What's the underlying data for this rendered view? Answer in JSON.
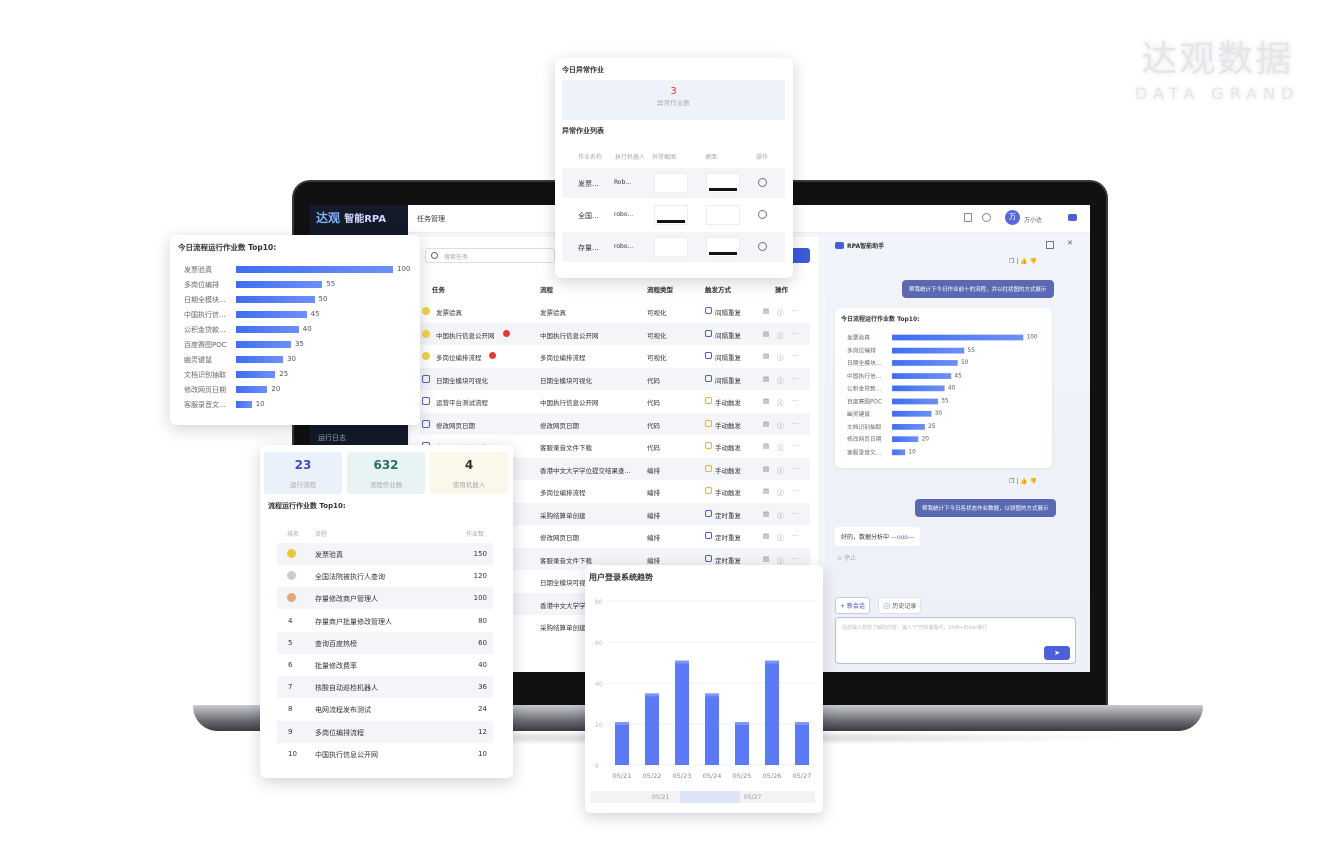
{
  "brand": {
    "cn": "达观数据",
    "en": "DATA GRAND"
  },
  "app": {
    "logo": "达观",
    "logo_product": "智能RPA",
    "breadcrumb": "任务管理",
    "user": "万小达",
    "avatar": "万",
    "sidebar_item": "运行日志",
    "search_placeholder": "搜索任务",
    "columns": [
      "任务",
      "流程",
      "流程类型",
      "触发方式",
      "操作"
    ],
    "rows": [
      {
        "task": "发票验真",
        "flow": "发票验真",
        "type": "可视化",
        "trigger": "间隔重复",
        "badge": false,
        "kind": "visual"
      },
      {
        "task": "中国执行信息公开网",
        "flow": "中国执行信息公开网",
        "type": "可视化",
        "trigger": "间隔重复",
        "badge": true,
        "kind": "visual"
      },
      {
        "task": "多岗位编排流程",
        "flow": "多岗位编排流程",
        "type": "可视化",
        "trigger": "间隔重复",
        "badge": true,
        "kind": "visual"
      },
      {
        "task": "日期全模块可视化",
        "flow": "日期全模块可视化",
        "type": "代码",
        "trigger": "间隔重复",
        "badge": false,
        "kind": "code"
      },
      {
        "task": "运营平台测试流程",
        "flow": "中国执行信息公开网",
        "type": "代码",
        "trigger": "手动触发",
        "badge": false,
        "kind": "code"
      },
      {
        "task": "修改网页日期",
        "flow": "修改网页日期",
        "type": "代码",
        "trigger": "手动触发",
        "badge": false,
        "kind": "code"
      },
      {
        "task": "客服录音文件下载",
        "flow": "客服录音文件下载",
        "type": "代码",
        "trigger": "手动触发",
        "badge": false,
        "kind": "code"
      },
      {
        "task": "",
        "flow": "香港中文大学学位提交结果查...",
        "type": "编排",
        "trigger": "手动触发",
        "badge": false,
        "kind": "code"
      },
      {
        "task": "",
        "flow": "多岗位编排流程",
        "type": "编排",
        "trigger": "手动触发",
        "badge": false,
        "kind": "code"
      },
      {
        "task": "",
        "flow": "采购结算单创建",
        "type": "编排",
        "trigger": "定时重复",
        "badge": false,
        "kind": "code"
      },
      {
        "task": "",
        "flow": "修改网页日期",
        "type": "编排",
        "trigger": "定时重复",
        "badge": false,
        "kind": "code"
      },
      {
        "task": "",
        "flow": "客服录音文件下载",
        "type": "编排",
        "trigger": "定时重复",
        "badge": false,
        "kind": "code"
      },
      {
        "task": "",
        "flow": "日期全模块可视化",
        "type": "",
        "trigger": "",
        "badge": false,
        "kind": "code"
      },
      {
        "task": "",
        "flow": "香港中文大学学",
        "type": "",
        "trigger": "",
        "badge": false,
        "kind": "code"
      },
      {
        "task": "",
        "flow": "采购结算单创建",
        "type": "",
        "trigger": "",
        "badge": false,
        "kind": "code"
      }
    ]
  },
  "chat": {
    "title": "RPA智能助手",
    "user_msg_1": "帮我统计下今日作业前十的流程，并以柱状图的方式展示",
    "user_msg_2": "帮我统计下今日各状态作业数据，以饼图的方式展示",
    "bot_reply": "好的，数据分析中",
    "stop": "停止",
    "new_chat": "+ 新会话",
    "history": "历史记录",
    "input_placeholder": "在此输入您想了解的内容，输入\"/\"可快速提问，Shift+Enter换行"
  },
  "top10": {
    "title": "今日流程运行作业数 Top10:",
    "items": [
      {
        "name": "发票验真",
        "value": 100
      },
      {
        "name": "多岗位编排",
        "value": 55
      },
      {
        "name": "日期全模块...",
        "value": 50
      },
      {
        "name": "中国执行信...",
        "value": 45
      },
      {
        "name": "公积金贷款...",
        "value": 40
      },
      {
        "name": "百度赛图POC",
        "value": 35
      },
      {
        "name": "幽灵键鼠",
        "value": 30
      },
      {
        "name": "文档识别抽取",
        "value": 25
      },
      {
        "name": "修改网页日期",
        "value": 20
      },
      {
        "name": "客服录音文...",
        "value": 10
      }
    ]
  },
  "exceptions": {
    "title": "今日异常作业",
    "count": "3",
    "count_label": "异常作业数",
    "list_title": "异常作业列表",
    "columns": [
      "作业名称",
      "执行机器人",
      "异常截图",
      "桌面",
      "操作"
    ],
    "rows": [
      {
        "name": "发票...",
        "robot": "Rob..."
      },
      {
        "name": "全国...",
        "robot": "robo..."
      },
      {
        "name": "存量...",
        "robot": "robo..."
      }
    ]
  },
  "stats": {
    "cards": [
      {
        "value": "23",
        "label": "运行流程",
        "color": "#3d4fb8",
        "bg": "#eaf1fb"
      },
      {
        "value": "632",
        "label": "流程作业数",
        "color": "#2b6f6a",
        "bg": "#e7f4f3"
      },
      {
        "value": "4",
        "label": "使用机器人",
        "color": "#333333",
        "bg": "#fbf7ea"
      }
    ],
    "title": "流程运行作业数 Top10:",
    "columns": [
      "排名",
      "流程",
      "作业数"
    ],
    "rows": [
      {
        "rank": "1",
        "name": "发票验真",
        "value": "150",
        "medal": "#e9c93b"
      },
      {
        "rank": "2",
        "name": "全国法院被执行人查询",
        "value": "120",
        "medal": "#c9ccd2"
      },
      {
        "rank": "3",
        "name": "存量修改商户管理人",
        "value": "100",
        "medal": "#e2a878"
      },
      {
        "rank": "4",
        "name": "存量商户批量修改管理人",
        "value": "80"
      },
      {
        "rank": "5",
        "name": "查询百度热榜",
        "value": "60"
      },
      {
        "rank": "6",
        "name": "批量修改费率",
        "value": "40"
      },
      {
        "rank": "7",
        "name": "核酸自动巡检机器人",
        "value": "36"
      },
      {
        "rank": "8",
        "name": "电网流程发布测试",
        "value": "24"
      },
      {
        "rank": "9",
        "name": "多岗位编排流程",
        "value": "12"
      },
      {
        "rank": "10",
        "name": "中国执行信息公开网",
        "value": "10"
      }
    ]
  },
  "chart_data": {
    "type": "bar",
    "title": "用户登录系统趋势",
    "categories": [
      "05/21",
      "05/22",
      "05/23",
      "05/24",
      "05/25",
      "05/26",
      "05/27"
    ],
    "values": [
      20,
      34,
      50,
      34,
      20,
      50,
      20
    ],
    "ylim": [
      0,
      80
    ],
    "yticks": [
      "0",
      "20",
      "40",
      "60",
      "80"
    ],
    "grid": true,
    "slider_labels": [
      "05/21",
      "05/27"
    ],
    "color": "#4a6cf5"
  }
}
